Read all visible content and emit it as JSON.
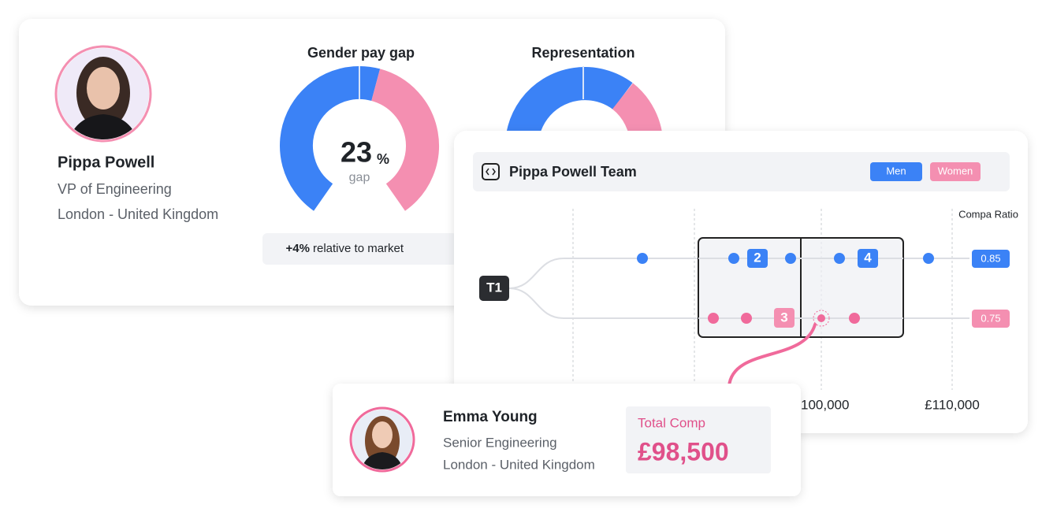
{
  "profile_card": {
    "name": "Pippa Powell",
    "title": "VP of Engineering",
    "location": "London - United Kingdom"
  },
  "gender_pay_gap": {
    "title": "Gender pay gap",
    "value": "23",
    "unit": "%",
    "caption": "gap",
    "market_change": "+4%",
    "market_text": "relative to market"
  },
  "representation": {
    "title": "Representation"
  },
  "team_card": {
    "title": "Pippa Powell Team",
    "legend": [
      "Men",
      "Women"
    ],
    "axis_label": "Compa Ratio",
    "tier": "T1",
    "badges": [
      "2",
      "4",
      "3"
    ],
    "ratios": [
      "0.85",
      "0.75"
    ],
    "x_labels": [
      "£100,000",
      "£110,000"
    ]
  },
  "employee_card": {
    "name": "Emma Young",
    "title": "Senior Engineering",
    "location": "London - United Kingdom",
    "comp_label": "Total Comp",
    "comp_value": "£98,500"
  }
}
